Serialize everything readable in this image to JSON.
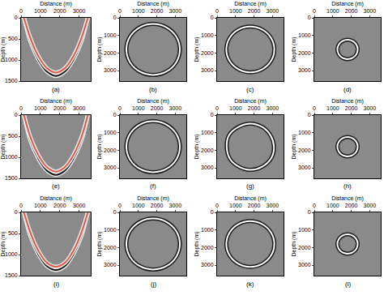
{
  "chart_data": [
    {
      "type": "line",
      "xlabel": "Distance (m)",
      "ylabel": "Depth (m)",
      "caption": "(a)",
      "xlim": [
        0,
        3600
      ],
      "ylim": [
        1500,
        0
      ],
      "xticks": [
        0,
        1000,
        2000,
        3000
      ],
      "yticks": [
        0,
        500,
        1000,
        1500
      ],
      "series": [
        {
          "color": "#111111",
          "x": [
            150,
            450,
            750,
            1050,
            1350,
            1800,
            2250,
            2550,
            2850,
            3150,
            3450
          ],
          "values": [
            0,
            520,
            860,
            1110,
            1280,
            1380,
            1280,
            1110,
            860,
            520,
            0
          ]
        },
        {
          "color": "#e05a4a",
          "x": [
            150,
            450,
            750,
            1050,
            1350,
            1800,
            2250,
            2550,
            2850,
            3150,
            3450
          ],
          "values": [
            0,
            440,
            780,
            1030,
            1200,
            1300,
            1200,
            1030,
            780,
            440,
            0
          ]
        }
      ]
    },
    {
      "type": "line",
      "xlabel": "Distance (m)",
      "ylabel": "Depth (m)",
      "caption": "(b)",
      "xlim": [
        0,
        3600
      ],
      "ylim": [
        3600,
        0
      ],
      "xticks": [
        0,
        1000,
        2000,
        3000
      ],
      "yticks": [
        0,
        1000,
        2000,
        3000
      ],
      "series": [
        {
          "color": "#ffffff",
          "x": [
            3250,
            3056,
            2525,
            1800,
            1075,
            544,
            350,
            544,
            1075,
            1800,
            2525,
            3056,
            3250
          ],
          "values": [
            1800,
            2525,
            3056,
            3250,
            3056,
            2525,
            1800,
            1075,
            544,
            350,
            544,
            1075,
            1800
          ]
        }
      ]
    },
    {
      "type": "line",
      "xlabel": "Distance (m)",
      "ylabel": "Depth (m)",
      "caption": "(c)",
      "xlim": [
        0,
        3600
      ],
      "ylim": [
        3600,
        0
      ],
      "xticks": [
        0,
        1000,
        2000,
        3000
      ],
      "yticks": [
        0,
        1000,
        2000,
        3000
      ],
      "series": [
        {
          "color": "#ffffff",
          "x": [
            3100,
            2926,
            2450,
            1800,
            1150,
            674,
            500,
            674,
            1150,
            1800,
            2450,
            2926,
            3100
          ],
          "values": [
            1800,
            2450,
            2926,
            3100,
            2926,
            2450,
            1800,
            1150,
            674,
            500,
            674,
            1150,
            1800
          ]
        }
      ]
    },
    {
      "type": "line",
      "xlabel": "Distance (m)",
      "ylabel": "Depth (m)",
      "caption": "(d)",
      "xlim": [
        0,
        3600
      ],
      "ylim": [
        3600,
        0
      ],
      "xticks": [
        0,
        1000,
        2000,
        3000
      ],
      "yticks": [
        0,
        1000,
        2000,
        3000
      ],
      "series": [
        {
          "color": "#ffffff",
          "x": [
            2350,
            2276,
            2075,
            1800,
            1525,
            1324,
            1250,
            1324,
            1525,
            1800,
            2075,
            2276,
            2350
          ],
          "values": [
            1800,
            2075,
            2276,
            2350,
            2276,
            2075,
            1800,
            1525,
            1324,
            1250,
            1324,
            1525,
            1800
          ]
        }
      ]
    },
    {
      "type": "line",
      "xlabel": "Distance (m)",
      "ylabel": "Depth (m)",
      "caption": "(e)",
      "xlim": [
        0,
        3600
      ],
      "ylim": [
        1500,
        0
      ],
      "xticks": [
        0,
        1000,
        2000,
        3000
      ],
      "yticks": [
        0,
        500,
        1000,
        1500
      ],
      "series": [
        {
          "color": "#111111",
          "x": [
            150,
            450,
            750,
            1050,
            1350,
            1800,
            2250,
            2550,
            2850,
            3150,
            3450
          ],
          "values": [
            0,
            560,
            900,
            1150,
            1320,
            1420,
            1320,
            1150,
            900,
            560,
            0
          ]
        },
        {
          "color": "#e05a4a",
          "x": [
            150,
            450,
            750,
            1050,
            1350,
            1800,
            2250,
            2550,
            2850,
            3150,
            3450
          ],
          "values": [
            0,
            480,
            820,
            1070,
            1240,
            1340,
            1240,
            1070,
            820,
            480,
            0
          ]
        }
      ]
    },
    {
      "type": "line",
      "xlabel": "Distance (m)",
      "ylabel": "Depth (m)",
      "caption": "(f)",
      "xlim": [
        0,
        3600
      ],
      "ylim": [
        3600,
        0
      ],
      "xticks": [
        0,
        1000,
        2000,
        3000
      ],
      "yticks": [
        0,
        1000,
        2000,
        3000
      ],
      "series": [
        {
          "color": "#ffffff",
          "x": [
            3250,
            3056,
            2525,
            1800,
            1075,
            544,
            350,
            544,
            1075,
            1800,
            2525,
            3056,
            3250
          ],
          "values": [
            1800,
            2525,
            3056,
            3250,
            3056,
            2525,
            1800,
            1075,
            544,
            350,
            544,
            1075,
            1800
          ]
        }
      ]
    },
    {
      "type": "line",
      "xlabel": "Distance (m)",
      "ylabel": "Depth (m)",
      "caption": "(g)",
      "xlim": [
        0,
        3600
      ],
      "ylim": [
        3600,
        0
      ],
      "xticks": [
        0,
        1000,
        2000,
        3000
      ],
      "yticks": [
        0,
        1000,
        2000,
        3000
      ],
      "series": [
        {
          "color": "#ffffff",
          "x": [
            3080,
            2950,
            2420,
            1800,
            1120,
            690,
            520,
            650,
            1180,
            1800,
            2470,
            2900,
            3080
          ],
          "values": [
            1800,
            2420,
            2950,
            3120,
            2900,
            2480,
            1800,
            1130,
            660,
            480,
            690,
            1170,
            1800
          ]
        }
      ]
    },
    {
      "type": "line",
      "xlabel": "Distance (m)",
      "ylabel": "Depth (m)",
      "caption": "(h)",
      "xlim": [
        0,
        3600
      ],
      "ylim": [
        3600,
        0
      ],
      "xticks": [
        0,
        1000,
        2000,
        3000
      ],
      "yticks": [
        0,
        1000,
        2000,
        3000
      ],
      "series": [
        {
          "color": "#ffffff",
          "x": [
            2350,
            2276,
            2075,
            1800,
            1525,
            1324,
            1250,
            1324,
            1525,
            1800,
            2075,
            2276,
            2350
          ],
          "values": [
            1800,
            2075,
            2276,
            2350,
            2276,
            2075,
            1800,
            1525,
            1324,
            1250,
            1324,
            1525,
            1800
          ]
        }
      ]
    },
    {
      "type": "line",
      "xlabel": "Distance (m)",
      "ylabel": "Depth (m)",
      "caption": "(i)",
      "xlim": [
        0,
        3600
      ],
      "ylim": [
        1500,
        0
      ],
      "xticks": [
        0,
        1000,
        2000,
        3000
      ],
      "yticks": [
        0,
        500,
        1000,
        1500
      ],
      "series": [
        {
          "color": "#111111",
          "x": [
            150,
            450,
            750,
            1050,
            1350,
            1800,
            2250,
            2550,
            2850,
            3150,
            3450
          ],
          "values": [
            0,
            520,
            860,
            1110,
            1280,
            1370,
            1280,
            1110,
            860,
            520,
            0
          ]
        },
        {
          "color": "#e05a4a",
          "x": [
            150,
            450,
            750,
            1050,
            1350,
            1800,
            2250,
            2550,
            2850,
            3150,
            3450
          ],
          "values": [
            0,
            440,
            780,
            1030,
            1200,
            1290,
            1200,
            1030,
            780,
            440,
            0
          ]
        }
      ]
    },
    {
      "type": "line",
      "xlabel": "Distance (m)",
      "ylabel": "Depth (m)",
      "caption": "(j)",
      "xlim": [
        0,
        3600
      ],
      "ylim": [
        3600,
        0
      ],
      "xticks": [
        0,
        1000,
        2000,
        3000
      ],
      "yticks": [
        0,
        1000,
        2000,
        3000
      ],
      "series": [
        {
          "color": "#ffffff",
          "x": [
            3250,
            3056,
            2525,
            1800,
            1075,
            544,
            350,
            544,
            1075,
            1800,
            2525,
            3056,
            3250
          ],
          "values": [
            1800,
            2525,
            3056,
            3250,
            3056,
            2525,
            1800,
            1075,
            544,
            350,
            544,
            1075,
            1800
          ]
        }
      ]
    },
    {
      "type": "line",
      "xlabel": "Distance (m)",
      "ylabel": "Depth (m)",
      "caption": "(k)",
      "xlim": [
        0,
        3600
      ],
      "ylim": [
        3600,
        0
      ],
      "xticks": [
        0,
        1000,
        2000,
        3000
      ],
      "yticks": [
        0,
        1000,
        2000,
        3000
      ],
      "series": [
        {
          "color": "#ffffff",
          "x": [
            3100,
            2926,
            2450,
            1800,
            1150,
            674,
            500,
            674,
            1150,
            1800,
            2450,
            2926,
            3100
          ],
          "values": [
            1800,
            2450,
            2926,
            3100,
            2926,
            2450,
            1800,
            1150,
            674,
            500,
            674,
            1150,
            1800
          ]
        }
      ]
    },
    {
      "type": "line",
      "xlabel": "Distance (m)",
      "ylabel": "Depth (m)",
      "caption": "(l)",
      "xlim": [
        0,
        3600
      ],
      "ylim": [
        3600,
        0
      ],
      "xticks": [
        0,
        1000,
        2000,
        3000
      ],
      "yticks": [
        0,
        1000,
        2000,
        3000
      ],
      "series": [
        {
          "color": "#ffffff",
          "x": [
            2350,
            2276,
            2075,
            1800,
            1525,
            1324,
            1250,
            1324,
            1525,
            1800,
            2075,
            2276,
            2350
          ],
          "values": [
            1800,
            2075,
            2276,
            2350,
            2276,
            2075,
            1800,
            1525,
            1324,
            1250,
            1324,
            1525,
            1800
          ]
        }
      ]
    }
  ]
}
